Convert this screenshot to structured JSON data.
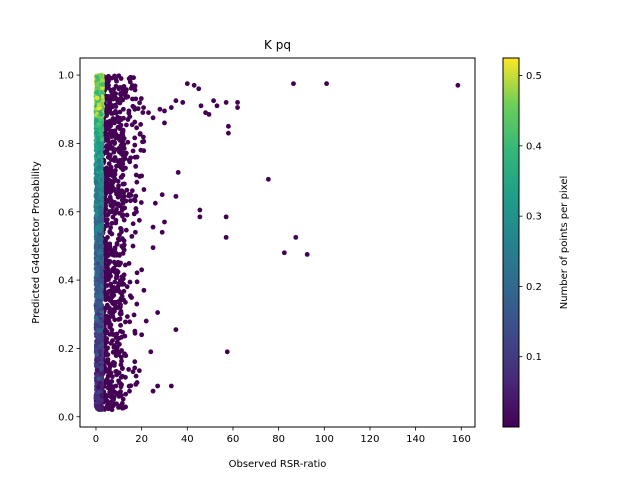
{
  "chart_data": {
    "type": "scatter",
    "title": "K pq",
    "xlabel": "Observed RSR-ratio",
    "ylabel": "Predicted G4detector Probability",
    "xlim": [
      -7,
      166
    ],
    "ylim": [
      -0.03,
      1.05
    ],
    "xticks": [
      0,
      20,
      40,
      60,
      80,
      100,
      120,
      140,
      160
    ],
    "yticks": [
      0.0,
      0.2,
      0.4,
      0.6,
      0.8,
      1.0
    ],
    "grid": false,
    "legend": "none",
    "colorbar": {
      "label": "Number of points per pixel",
      "range": [
        0.0,
        0.525
      ],
      "ticks": [
        0.1,
        0.2,
        0.3,
        0.4,
        0.5
      ],
      "colormap": "viridis"
    },
    "marker_color_low": "#440154",
    "marker_color_high": "#fde725",
    "points": [
      [
        101,
        0.975
      ],
      [
        158.5,
        0.97
      ],
      [
        86.5,
        0.975
      ],
      [
        75.5,
        0.695
      ],
      [
        82.5,
        0.48
      ],
      [
        87.5,
        0.525
      ],
      [
        92.5,
        0.475
      ],
      [
        62,
        0.92
      ],
      [
        62,
        0.905
      ],
      [
        57,
        0.92
      ],
      [
        58,
        0.85
      ],
      [
        58,
        0.83
      ],
      [
        53,
        0.91
      ],
      [
        51.5,
        0.925
      ],
      [
        46,
        0.91
      ],
      [
        48,
        0.89
      ],
      [
        49.5,
        0.885
      ],
      [
        43,
        0.97
      ],
      [
        40,
        0.975
      ],
      [
        45,
        0.96
      ],
      [
        38,
        0.92
      ],
      [
        33,
        0.905
      ],
      [
        28,
        0.9
      ],
      [
        30,
        0.895
      ],
      [
        23,
        0.89
      ],
      [
        35,
        0.925
      ],
      [
        30,
        0.86
      ],
      [
        25,
        0.875
      ],
      [
        57,
        0.585
      ],
      [
        57,
        0.525
      ],
      [
        57.5,
        0.19
      ],
      [
        45.5,
        0.605
      ],
      [
        45.5,
        0.585
      ],
      [
        36,
        0.715
      ],
      [
        35,
        0.645
      ],
      [
        35,
        0.255
      ],
      [
        33,
        0.09
      ],
      [
        29,
        0.65
      ],
      [
        30,
        0.57
      ],
      [
        29,
        0.54
      ],
      [
        26,
        0.625
      ],
      [
        25,
        0.555
      ],
      [
        25,
        0.495
      ],
      [
        27,
        0.305
      ],
      [
        27,
        0.09
      ],
      [
        24,
        0.19
      ],
      [
        25,
        0.075
      ],
      [
        20,
        0.43
      ],
      [
        21,
        0.37
      ],
      [
        22,
        0.28
      ],
      [
        20,
        0.24
      ],
      [
        19,
        0.135
      ],
      [
        18,
        0.1
      ],
      [
        18,
        0.395
      ],
      [
        19,
        0.575
      ],
      [
        20,
        0.705
      ],
      [
        21,
        0.665
      ],
      [
        18,
        0.76
      ],
      [
        17,
        0.795
      ],
      [
        16,
        0.93
      ],
      [
        15,
        0.98
      ],
      [
        14,
        0.87
      ],
      [
        13,
        0.95
      ],
      [
        12,
        0.9
      ],
      [
        11,
        0.99
      ],
      [
        10,
        0.96
      ]
    ]
  }
}
